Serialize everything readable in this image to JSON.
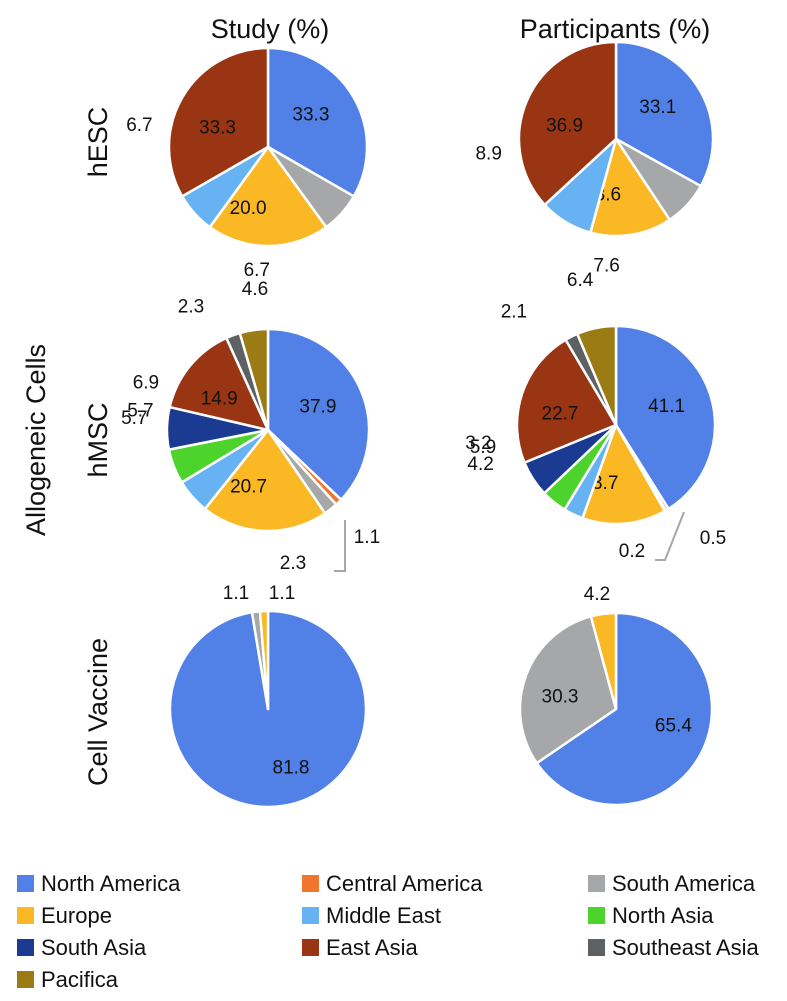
{
  "column_titles": [
    "Study (%)",
    "Participants (%)"
  ],
  "row_titles": [
    "hESC",
    "hMSC",
    "Cell Vaccine"
  ],
  "group_title": "Allogeneic Cells",
  "colors": {
    "North America": "#5181E6",
    "Central America": "#F2752D",
    "South America": "#A5A7A8",
    "Europe": "#FAB824",
    "Middle East": "#67B2F2",
    "North Asia": "#4DD42C",
    "South Asia": "#1B3A92",
    "East Asia": "#9A3514",
    "Southeast Asia": "#5D6163",
    "Pacifica": "#9B7C14"
  },
  "legend": [
    "North America",
    "Central America",
    "South America",
    "Europe",
    "Middle East",
    "North Asia",
    "South Asia",
    "East Asia",
    "Southeast Asia",
    "Pacifica"
  ],
  "chart_data": [
    {
      "type": "pie",
      "title": "Study (%)",
      "row": "hESC",
      "slices": [
        {
          "name": "North America",
          "value": 33.3,
          "label": "33.3"
        },
        {
          "name": "South America",
          "value": 6.7,
          "label": "6.7"
        },
        {
          "name": "Europe",
          "value": 20.0,
          "label": "20.0"
        },
        {
          "name": "Middle East",
          "value": 6.7,
          "label": "6.7"
        },
        {
          "name": "East Asia",
          "value": 33.3,
          "label": "33.3"
        }
      ]
    },
    {
      "type": "pie",
      "title": "Participants (%)",
      "row": "hESC",
      "slices": [
        {
          "name": "North America",
          "value": 33.1,
          "label": "33.1"
        },
        {
          "name": "South America",
          "value": 7.6,
          "label": "7.6"
        },
        {
          "name": "Europe",
          "value": 13.6,
          "label": "13.6"
        },
        {
          "name": "Middle East",
          "value": 8.9,
          "label": "8.9"
        },
        {
          "name": "East Asia",
          "value": 36.9,
          "label": "36.9"
        }
      ]
    },
    {
      "type": "pie",
      "title": "Study (%)",
      "row": "hMSC",
      "slices": [
        {
          "name": "North America",
          "value": 37.9,
          "label": "37.9"
        },
        {
          "name": "Central America",
          "value": 1.1,
          "label": "1.1"
        },
        {
          "name": "South America",
          "value": 2.3,
          "label": "2.3"
        },
        {
          "name": "Europe",
          "value": 20.7,
          "label": "20.7"
        },
        {
          "name": "Middle East",
          "value": 5.7,
          "label": "5.7"
        },
        {
          "name": "North Asia",
          "value": 5.7,
          "label": "5.7"
        },
        {
          "name": "South Asia",
          "value": 6.9,
          "label": "6.9"
        },
        {
          "name": "East Asia",
          "value": 14.9,
          "label": "14.9"
        },
        {
          "name": "Southeast Asia",
          "value": 2.3,
          "label": "2.3"
        },
        {
          "name": "Pacifica",
          "value": 4.6,
          "label": "4.6"
        }
      ]
    },
    {
      "type": "pie",
      "title": "Participants (%)",
      "row": "hMSC",
      "slices": [
        {
          "name": "North America",
          "value": 41.1,
          "label": "41.1"
        },
        {
          "name": "Central America",
          "value": 0.5,
          "label": "0.5"
        },
        {
          "name": "South America",
          "value": 0.2,
          "label": "0.2"
        },
        {
          "name": "Europe",
          "value": 13.7,
          "label": "13.7"
        },
        {
          "name": "Middle East",
          "value": 3.2,
          "label": "3.2"
        },
        {
          "name": "North Asia",
          "value": 4.2,
          "label": "4.2"
        },
        {
          "name": "South Asia",
          "value": 5.9,
          "label": "5.9"
        },
        {
          "name": "East Asia",
          "value": 22.7,
          "label": "22.7"
        },
        {
          "name": "Southeast Asia",
          "value": 2.1,
          "label": "2.1"
        },
        {
          "name": "Pacifica",
          "value": 6.4,
          "label": "6.4"
        }
      ]
    },
    {
      "type": "pie",
      "title": "Study (%)",
      "row": "Cell Vaccine",
      "slices": [
        {
          "name": "North America",
          "value": 81.8,
          "label": "81.8"
        },
        {
          "name": "South America",
          "value": 1.1,
          "label": "1.1"
        },
        {
          "name": "Europe",
          "value": 1.1,
          "label": "1.1"
        }
      ]
    },
    {
      "type": "pie",
      "title": "Participants (%)",
      "row": "Cell Vaccine",
      "slices": [
        {
          "name": "North America",
          "value": 65.4,
          "label": "65.4"
        },
        {
          "name": "South America",
          "value": 30.3,
          "label": "30.3"
        },
        {
          "name": "Europe",
          "value": 4.2,
          "label": "4.2"
        }
      ]
    }
  ]
}
